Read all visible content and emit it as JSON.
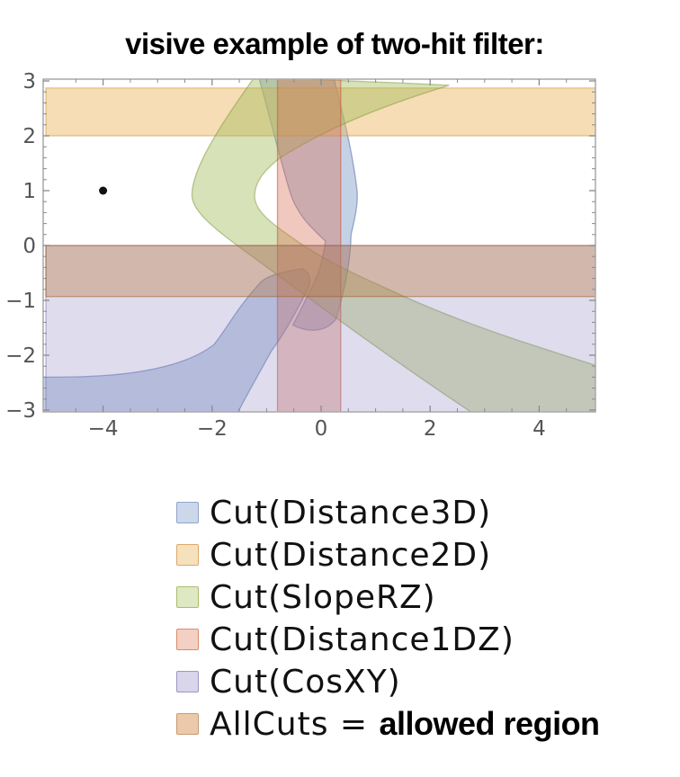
{
  "title": "visive example of two-hit filter:",
  "chart_data": {
    "type": "region-plot",
    "title": "visive example of two-hit filter:",
    "x_axis": {
      "range": [
        -5,
        5
      ],
      "major_ticks": [
        -4,
        -2,
        0,
        2,
        4
      ],
      "minor_step": 0.5
    },
    "y_axis": {
      "range": [
        -3,
        3
      ],
      "major_ticks": [
        3,
        2,
        1,
        0,
        -1,
        -2,
        -3
      ],
      "minor_step": 0.2
    },
    "grid": false,
    "frame_color": "#9a9a9a",
    "tick_color": "#8a8a8a",
    "tick_label_color": "#555555",
    "point": {
      "x": -4,
      "y": 1,
      "color": "#111111"
    },
    "regions": [
      {
        "name": "Cut(Distance3D)",
        "fill": "rgba(110,140,190,0.40)",
        "stroke": "rgba(70,100,160,0.50)",
        "paths": [
          [
            [
              "M",
              -1.15,
              3.1
            ],
            [
              "C",
              -0.88,
              2.1,
              -0.73,
              1.5,
              -0.58,
              1.0
            ],
            [
              "C",
              -0.45,
              0.55,
              -0.15,
              0.3,
              0.08,
              0.08
            ],
            [
              "C",
              0.03,
              -0.28,
              -0.04,
              -0.5,
              -0.14,
              -0.7
            ],
            [
              "C",
              -0.3,
              -1.02,
              -0.42,
              -1.28,
              -0.52,
              -1.45
            ],
            [
              "C",
              -0.18,
              -1.62,
              0.12,
              -1.55,
              0.28,
              -1.33
            ],
            [
              "C",
              0.42,
              -0.85,
              0.54,
              -0.3,
              0.55,
              0.2
            ],
            [
              "C",
              0.62,
              0.5,
              0.68,
              0.75,
              0.66,
              1.0
            ],
            [
              "C",
              0.58,
              1.7,
              0.4,
              2.4,
              0.22,
              3.1
            ],
            [
              "Z"
            ]
          ],
          [
            [
              "M",
              -0.35,
              -0.42
            ],
            [
              "C",
              -0.8,
              -0.5,
              -1.0,
              -0.56,
              -1.12,
              -0.68
            ],
            [
              "C",
              -1.55,
              -1.15,
              -1.72,
              -1.5,
              -1.97,
              -1.81
            ],
            [
              "C",
              -2.45,
              -2.18,
              -3.3,
              -2.33,
              -4.0,
              -2.37
            ],
            [
              "C",
              -4.4,
              -2.4,
              -4.8,
              -2.4,
              -5.1,
              -2.4
            ],
            [
              "L",
              -5.1,
              -3.12
            ],
            [
              "L",
              -1.57,
              -3.12
            ],
            [
              "C",
              -1.35,
              -2.7,
              -1.15,
              -2.35,
              -0.91,
              -1.92
            ],
            [
              "C",
              -0.6,
              -1.5,
              -0.38,
              -1.05,
              -0.22,
              -0.75
            ],
            [
              "C",
              -0.18,
              -0.6,
              -0.22,
              -0.48,
              -0.35,
              -0.42
            ],
            [
              "Z"
            ]
          ]
        ]
      },
      {
        "name": "Cut(Distance2D)",
        "fill": "rgba(235,180,90,0.45)",
        "stroke": "rgba(210,150,60,0.55)",
        "paths": [
          [
            [
              "M",
              -5.05,
              2.87
            ],
            [
              "L",
              5.05,
              2.87
            ],
            [
              "L",
              5.05,
              2.0
            ],
            [
              "L",
              -5.05,
              2.0
            ],
            [
              "Z"
            ]
          ]
        ]
      },
      {
        "name": "Cut(SlopeRZ)",
        "fill": "rgba(160,185,85,0.42)",
        "stroke": "rgba(125,150,55,0.50)",
        "paths": [
          [
            [
              "M",
              -1.2,
              3.1
            ],
            [
              "C",
              -0.1,
              3.0,
              1.4,
              2.98,
              2.35,
              2.92
            ],
            [
              "C",
              1.3,
              2.6,
              0.2,
              2.2,
              -0.75,
              1.6
            ],
            [
              "C",
              -1.1,
              1.33,
              -1.22,
              1.12,
              -1.22,
              0.9
            ],
            [
              "C",
              -1.22,
              0.63,
              -0.92,
              0.4,
              -0.35,
              0.02
            ],
            [
              "C",
              0.25,
              -0.38,
              0.85,
              -0.62,
              1.5,
              -0.92
            ],
            [
              "C",
              2.8,
              -1.5,
              4.0,
              -1.85,
              5.08,
              -2.2
            ],
            [
              "L",
              5.08,
              -3.12
            ],
            [
              "L",
              2.88,
              -3.12
            ],
            [
              "C",
              1.7,
              -2.35,
              0.4,
              -1.42,
              -0.85,
              -0.5
            ],
            [
              "C",
              -1.75,
              0.16,
              -2.37,
              0.55,
              -2.37,
              0.92
            ],
            [
              "C",
              -2.37,
              1.4,
              -1.85,
              2.2,
              -1.2,
              3.1
            ],
            [
              "Z"
            ]
          ]
        ]
      },
      {
        "name": "Cut(Distance1DZ)",
        "fill": "rgba(215,110,85,0.38)",
        "stroke": "rgba(195,85,60,0.55)",
        "paths": [
          [
            [
              "M",
              -0.8,
              3.1
            ],
            [
              "L",
              0.36,
              3.1
            ],
            [
              "L",
              0.36,
              -3.1
            ],
            [
              "L",
              -0.8,
              -3.1
            ],
            [
              "Z"
            ]
          ]
        ]
      },
      {
        "name": "Cut(CosXY)",
        "fill": "rgba(140,130,195,0.28)",
        "stroke": "rgba(110,100,170,0.45)",
        "paths": [
          [
            [
              "M",
              -5.05,
              0
            ],
            [
              "L",
              5.05,
              0
            ],
            [
              "L",
              5.05,
              -3.12
            ],
            [
              "L",
              -5.05,
              -3.12
            ],
            [
              "Z"
            ]
          ]
        ]
      },
      {
        "name": "AllCuts",
        "fill": "rgba(185,115,50,0.35)",
        "stroke": "rgba(160,95,40,0.50)",
        "paths": [
          [
            [
              "M",
              -5.05,
              0
            ],
            [
              "L",
              5.05,
              0
            ],
            [
              "L",
              5.05,
              -0.93
            ],
            [
              "L",
              -5.05,
              -0.93
            ],
            [
              "Z"
            ]
          ]
        ]
      }
    ],
    "legend": [
      {
        "label": "Cut(Distance3D)",
        "swatch_fill": "#ccd7ea",
        "swatch_border": "#8fa6cd"
      },
      {
        "label": "Cut(Distance2D)",
        "swatch_fill": "#f6e1bd",
        "swatch_border": "#dca86b"
      },
      {
        "label": "Cut(SlopeRZ)",
        "swatch_fill": "#dfe8c3",
        "swatch_border": "#a9bd6d"
      },
      {
        "label": "Cut(Distance1DZ)",
        "swatch_fill": "#f3d0c3",
        "swatch_border": "#da8a6e"
      },
      {
        "label": "Cut(CosXY)",
        "swatch_fill": "#d9d5ea",
        "swatch_border": "#9f95c8"
      },
      {
        "label": "AllCuts = ",
        "label_suffix": "allowed region",
        "swatch_fill": "#ecc9ab",
        "swatch_border": "#c99972"
      }
    ]
  }
}
